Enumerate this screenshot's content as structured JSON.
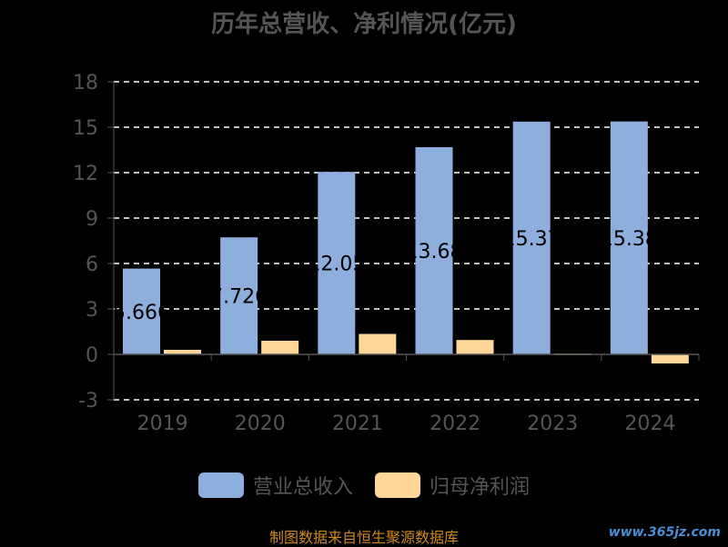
{
  "page": {
    "title": "历年总营收、净利情况(亿元)",
    "source": "制图数据来自恒生聚源数据库",
    "watermark": "www.365jz.com"
  },
  "colors": {
    "revenue": "#8eaede",
    "profit": "#ffd799",
    "axis_text": "#555555",
    "grid": "#ffffff"
  },
  "chart_data": {
    "type": "bar",
    "title": "历年总营收、净利情况(亿元)",
    "categories": [
      "2019",
      "2020",
      "2021",
      "2022",
      "2023",
      "2024"
    ],
    "ylim": [
      -3,
      18
    ],
    "yticks": [
      -3,
      0,
      3,
      6,
      9,
      12,
      15,
      18
    ],
    "grid": true,
    "legend_position": "bottom",
    "series": [
      {
        "name": "营业总收入",
        "values": [
          5.666,
          7.726,
          12.05,
          13.68,
          15.37,
          15.38
        ],
        "labels": [
          "5.666",
          "7.726",
          "12.05",
          "13.68",
          "15.37",
          "15.38"
        ]
      },
      {
        "name": "归母净利润",
        "values": [
          0.3,
          0.9,
          1.35,
          0.95,
          0.05,
          -0.6
        ]
      }
    ]
  }
}
